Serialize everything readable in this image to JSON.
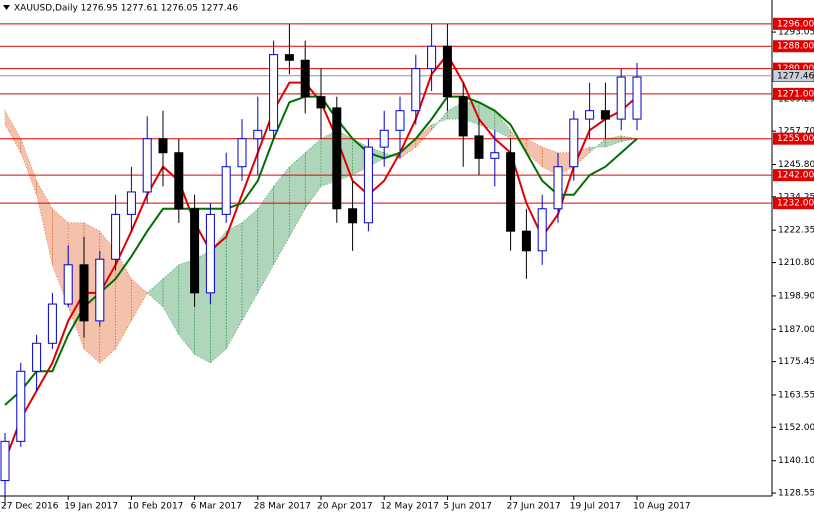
{
  "chart_data": {
    "type": "candlestick",
    "title": "XAUUSD,Daily  1276.95 1277.61 1276.05 1277.46",
    "categories": [
      "27 Dec 2016",
      null,
      null,
      null,
      "19 Jan 2017",
      null,
      null,
      null,
      "10 Feb 2017",
      null,
      null,
      null,
      "6 Mar 2017",
      null,
      null,
      null,
      "28 Mar 2017",
      null,
      null,
      null,
      "20 Apr 2017",
      null,
      null,
      null,
      "12 May 2017",
      null,
      null,
      null,
      "5 Jun 2017",
      null,
      null,
      null,
      "27 Jun 2017",
      null,
      null,
      null,
      "19 Jul 2017",
      null,
      null,
      null,
      "10 Aug 2017"
    ],
    "open": [
      1133,
      1147,
      1172,
      1182,
      1196,
      1210,
      1190,
      1212,
      1228,
      1236,
      1255,
      1250,
      1230,
      1200,
      1228,
      1245,
      1255,
      1258,
      1285,
      1283,
      1270,
      1266,
      1230,
      1225,
      1252,
      1258,
      1265,
      1280,
      1288,
      1270,
      1256,
      1248,
      1250,
      1222,
      1215,
      1230,
      1245,
      1262,
      1265,
      1262,
      1262
    ],
    "high": [
      1150,
      1175,
      1185,
      1200,
      1217,
      1220,
      1215,
      1235,
      1245,
      1263,
      1265,
      1255,
      1235,
      1232,
      1250,
      1262,
      1270,
      1290,
      1296,
      1290,
      1280,
      1270,
      1240,
      1255,
      1265,
      1270,
      1285,
      1296,
      1296,
      1275,
      1262,
      1258,
      1255,
      1230,
      1235,
      1250,
      1265,
      1275,
      1275,
      1280,
      1282
    ],
    "low": [
      1124,
      1145,
      1165,
      1180,
      1195,
      1184,
      1188,
      1208,
      1222,
      1232,
      1238,
      1225,
      1195,
      1196,
      1225,
      1240,
      1242,
      1255,
      1278,
      1264,
      1255,
      1225,
      1215,
      1222,
      1245,
      1248,
      1260,
      1272,
      1265,
      1245,
      1242,
      1238,
      1215,
      1205,
      1210,
      1225,
      1240,
      1255,
      1255,
      1258,
      1258
    ],
    "close": [
      1147,
      1172,
      1182,
      1196,
      1210,
      1190,
      1212,
      1228,
      1236,
      1255,
      1250,
      1230,
      1200,
      1228,
      1245,
      1255,
      1258,
      1285,
      1283,
      1270,
      1266,
      1230,
      1225,
      1252,
      1258,
      1265,
      1280,
      1288,
      1270,
      1256,
      1248,
      1250,
      1222,
      1215,
      1230,
      1245,
      1262,
      1265,
      1262,
      1277,
      1277
    ],
    "up_color": "#0000cc",
    "down_color": "#000000",
    "series": [
      {
        "name": "Tenkan-sen",
        "color": "#e00000",
        "values": [
          1140,
          1155,
          1165,
          1175,
          1190,
          1200,
          1200,
          1210,
          1222,
          1235,
          1245,
          1240,
          1225,
          1215,
          1220,
          1235,
          1250,
          1265,
          1275,
          1275,
          1268,
          1255,
          1240,
          1235,
          1240,
          1250,
          1262,
          1278,
          1285,
          1275,
          1262,
          1255,
          1250,
          1232,
          1220,
          1228,
          1245,
          1258,
          1262,
          1265,
          1270
        ]
      },
      {
        "name": "Kijun-sen",
        "color": "#007000",
        "values": [
          1160,
          1165,
          1172,
          1172,
          1185,
          1195,
          1200,
          1205,
          1213,
          1222,
          1230,
          1230,
          1230,
          1230,
          1230,
          1232,
          1240,
          1255,
          1268,
          1270,
          1270,
          1262,
          1255,
          1250,
          1248,
          1250,
          1255,
          1262,
          1270,
          1270,
          1268,
          1265,
          1260,
          1250,
          1240,
          1235,
          1235,
          1242,
          1245,
          1250,
          1255
        ]
      }
    ],
    "cloud": {
      "span_a": [
        1260,
        1250,
        1235,
        1210,
        1195,
        1180,
        1175,
        1180,
        1190,
        1200,
        1205,
        1210,
        1212,
        1215,
        1222,
        1225,
        1230,
        1238,
        1245,
        1250,
        1255,
        1258,
        1255,
        1252,
        1250,
        1248,
        1252,
        1258,
        1265,
        1268,
        1268,
        1265,
        1258,
        1250,
        1245,
        1242,
        1245,
        1250,
        1255,
        1256,
        1255
      ],
      "span_b": [
        1265,
        1255,
        1240,
        1230,
        1225,
        1225,
        1222,
        1215,
        1205,
        1200,
        1195,
        1185,
        1178,
        1175,
        1180,
        1190,
        1200,
        1210,
        1220,
        1230,
        1238,
        1240,
        1242,
        1245,
        1248,
        1250,
        1255,
        1260,
        1262,
        1262,
        1260,
        1258,
        1255,
        1255,
        1252,
        1250,
        1250,
        1252,
        1252,
        1254,
        1255
      ],
      "up_color": "#1a8a3a",
      "down_color": "#e05010"
    },
    "levels": [
      {
        "value": 1296,
        "label": "1296.00"
      },
      {
        "value": 1288,
        "label": "1288.00"
      },
      {
        "value": 1280,
        "label": "1280.00"
      },
      {
        "value": 1271,
        "label": "1271.00"
      },
      {
        "value": 1255,
        "label": "1255.00"
      },
      {
        "value": 1242,
        "label": "1242.00"
      },
      {
        "value": 1232,
        "label": "1232.00"
      }
    ],
    "level_color": "#e00000",
    "current_price": 1277.46,
    "ylim": [
      1127.5,
      1304.5
    ],
    "yticks": [
      1293.05,
      1269.25,
      {
        "value": 1257.7,
        "label": "1257.70"
      },
      {
        "value": 1245.8,
        "label": "1245.80"
      },
      1234.25,
      1222.35,
      {
        "value": 1210.8,
        "label": "1210.80"
      },
      {
        "value": 1198.9,
        "label": "1198.90"
      },
      {
        "value": 1187,
        "label": "1187.00"
      },
      1175.45,
      1163.55,
      {
        "value": 1152,
        "label": "1152.00"
      },
      {
        "value": 1140.1,
        "label": "1140.10"
      },
      1128.55
    ],
    "grid": false
  }
}
